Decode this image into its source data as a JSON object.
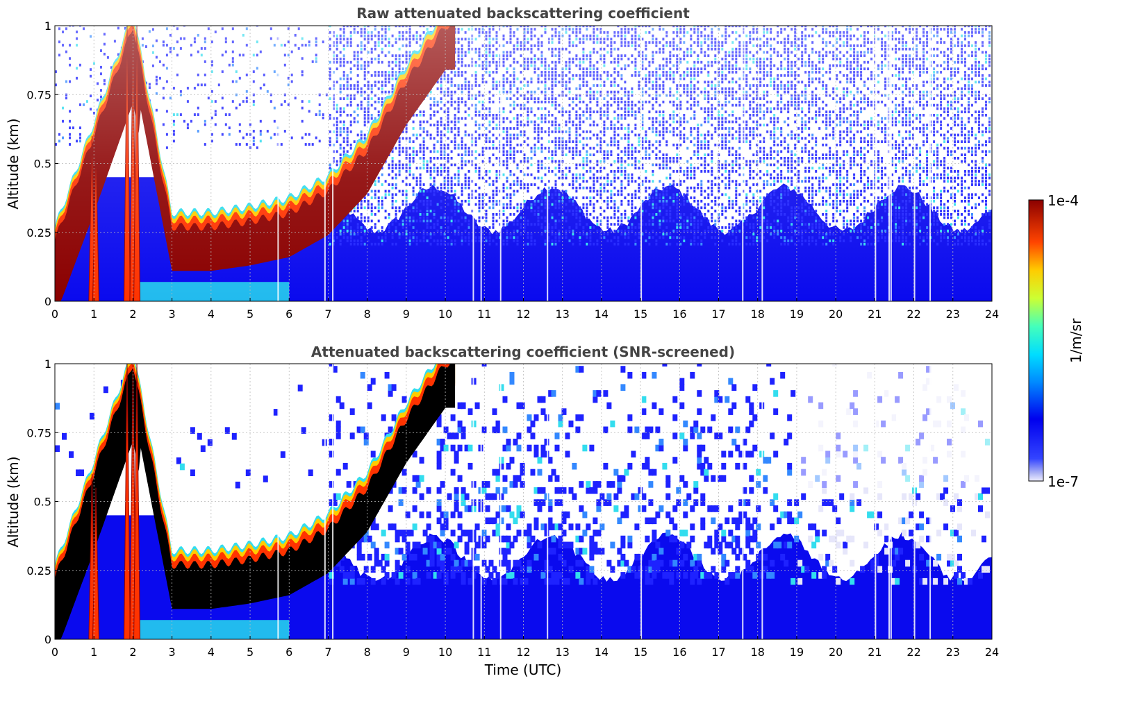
{
  "chart_data": [
    {
      "type": "heatmap",
      "title": "Raw attenuated backscattering coefficient",
      "xlabel": "",
      "ylabel": "Altitude (km)",
      "xlim": [
        0,
        24
      ],
      "ylim": [
        0,
        1
      ],
      "x_ticks": [
        "0",
        "1",
        "2",
        "3",
        "4",
        "5",
        "6",
        "7",
        "8",
        "9",
        "10",
        "11",
        "12",
        "13",
        "14",
        "15",
        "16",
        "17",
        "18",
        "19",
        "20",
        "21",
        "22",
        "23",
        "24"
      ],
      "y_ticks": [
        "0",
        "0.25",
        "0.5",
        "0.75",
        "1"
      ],
      "grid": true,
      "features": {
        "boundary_layer_top_km": [
          {
            "time": 0,
            "alt": 0.22
          },
          {
            "time": 1,
            "alt": 0.6
          },
          {
            "time": 2,
            "alt": 1.0
          },
          {
            "time": 3,
            "alt": 0.27
          },
          {
            "time": 4,
            "alt": 0.27
          },
          {
            "time": 5,
            "alt": 0.29
          },
          {
            "time": 6,
            "alt": 0.32
          },
          {
            "time": 7,
            "alt": 0.4
          },
          {
            "time": 8,
            "alt": 0.55
          },
          {
            "time": 9,
            "alt": 0.8
          },
          {
            "time": 10,
            "alt": 1.0
          }
        ],
        "noise_level_from_time": 7
      }
    },
    {
      "type": "heatmap",
      "title": "Attenuated backscattering coefficient (SNR-screened)",
      "xlabel": "Time (UTC)",
      "ylabel": "Altitude (km)",
      "xlim": [
        0,
        24
      ],
      "ylim": [
        0,
        1
      ],
      "x_ticks": [
        "0",
        "1",
        "2",
        "3",
        "4",
        "5",
        "6",
        "7",
        "8",
        "9",
        "10",
        "11",
        "12",
        "13",
        "14",
        "15",
        "16",
        "17",
        "18",
        "19",
        "20",
        "21",
        "22",
        "23",
        "24"
      ],
      "y_ticks": [
        "0",
        "0.25",
        "0.5",
        "0.75",
        "1"
      ],
      "grid": true,
      "features": {
        "screened_region": "white above boundary layer before 7 UTC",
        "saturated_core_color": "#000000"
      }
    }
  ],
  "colorbar": {
    "label": "1/m/sr",
    "max_label": "1e-4",
    "min_label": "1e-7",
    "colormap": "jet",
    "scale": "log"
  },
  "colors": {
    "title": "#444444",
    "axis": "#000000",
    "grid": "#bbbbbb"
  }
}
